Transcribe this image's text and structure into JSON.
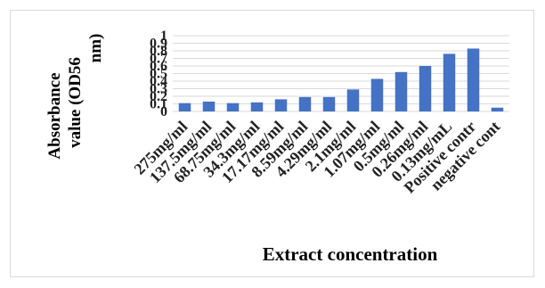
{
  "chart_data": {
    "type": "bar",
    "ylabel_lines": [
      "Absorbance",
      "value (OD56",
      "nm)"
    ],
    "xlabel": "Extract concentration",
    "categories": [
      "275mg/ml",
      "137.5mg/ml",
      "68.75mg/ml",
      "34.3mg/ml",
      "17.17mg/ml",
      "8.59mg/ml",
      "4.29mg/ml",
      "2.1mg/ml",
      "1.07mg/ml",
      "0.5mg/ml",
      "0.26mg/ml",
      "0.13mg/mL",
      "Positive contr",
      "negative cont"
    ],
    "values": [
      0.11,
      0.13,
      0.11,
      0.12,
      0.16,
      0.19,
      0.19,
      0.29,
      0.43,
      0.52,
      0.6,
      0.76,
      0.83,
      0.05
    ],
    "y_ticks": [
      "0",
      "0.1",
      "0.2",
      "0.3",
      "0.4",
      "0.5",
      "0.6",
      "0.7",
      "0.8",
      "0.9",
      "1"
    ],
    "ylim": [
      0,
      1
    ],
    "grid": true,
    "bar_color": "#4472c4"
  }
}
